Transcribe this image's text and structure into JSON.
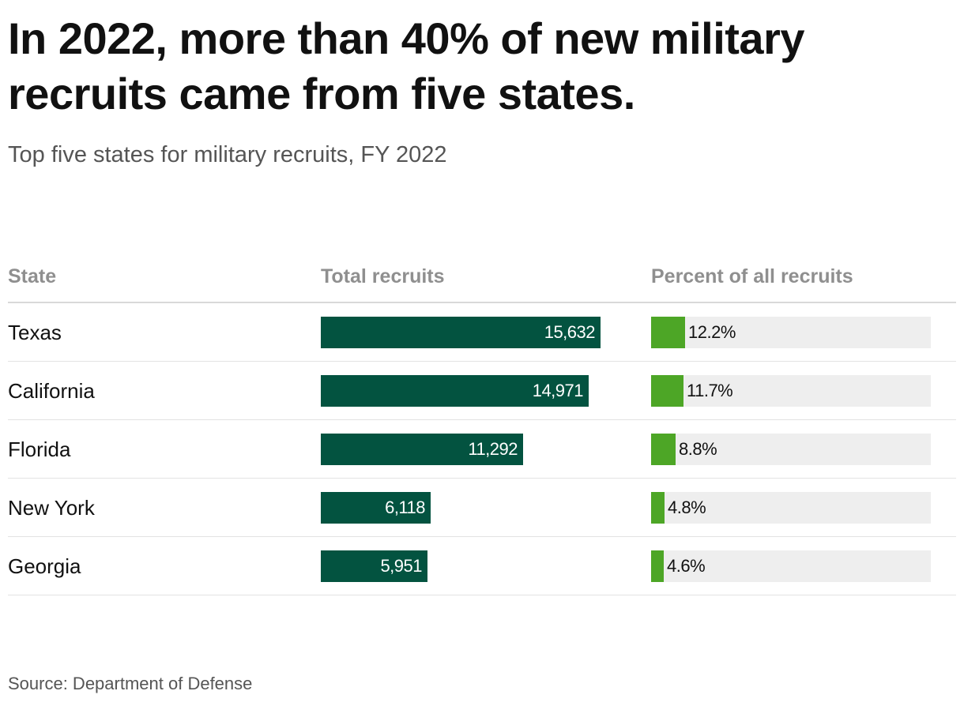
{
  "title": "In 2022, more than 40% of new military recruits came from five states.",
  "subtitle": "Top five states for military recruits, FY 2022",
  "source": "Source: Department of Defense",
  "colors": {
    "total_bar": "#035340",
    "percent_fill": "#4da626",
    "percent_track": "#eeeeee"
  },
  "chart_data": {
    "type": "table",
    "title": "In 2022, more than 40% of new military recruits came from five states.",
    "subtitle": "Top five states for military recruits, FY 2022",
    "columns": [
      "State",
      "Total recruits",
      "Percent of all recruits"
    ],
    "rows": [
      {
        "state": "Texas",
        "total": 15632,
        "total_label": "15,632",
        "percent": 12.2,
        "percent_label": "12.2%"
      },
      {
        "state": "California",
        "total": 14971,
        "total_label": "14,971",
        "percent": 11.7,
        "percent_label": "11.7%"
      },
      {
        "state": "Florida",
        "total": 11292,
        "total_label": "11,292",
        "percent": 8.8,
        "percent_label": "8.8%"
      },
      {
        "state": "New York",
        "total": 6118,
        "total_label": "6,118",
        "percent": 4.8,
        "percent_label": "4.8%"
      },
      {
        "state": "Georgia",
        "total": 5951,
        "total_label": "5,951",
        "percent": 4.6,
        "percent_label": "4.6%"
      }
    ],
    "total_axis_max": 15632,
    "percent_axis_max": 100
  }
}
